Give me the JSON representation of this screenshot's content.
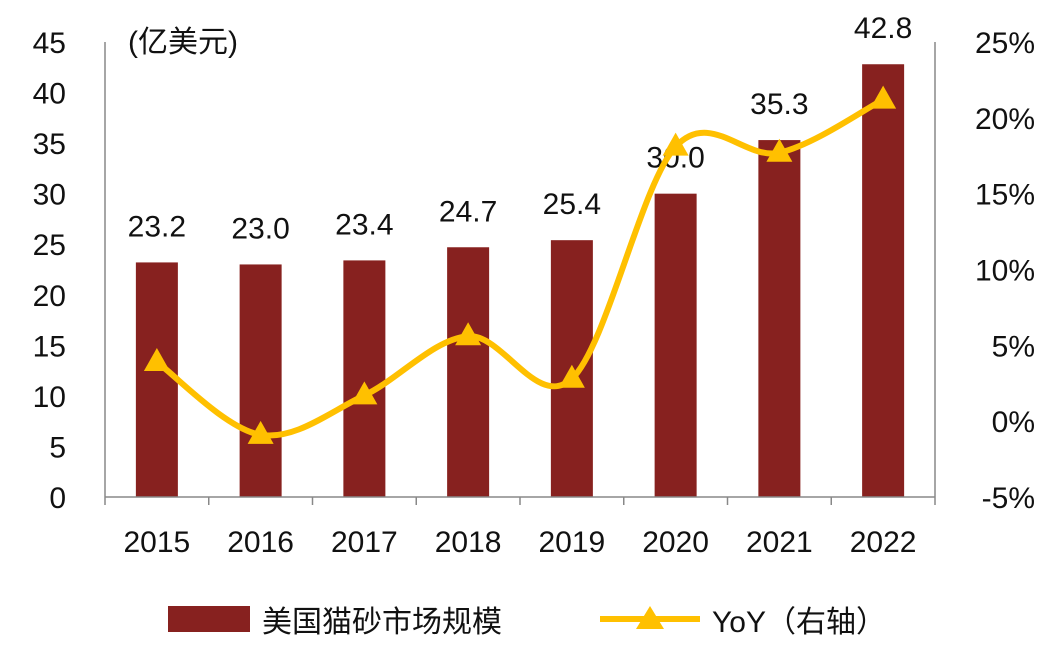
{
  "chart_data": {
    "type": "bar+line",
    "categories": [
      "2015",
      "2016",
      "2017",
      "2018",
      "2019",
      "2020",
      "2021",
      "2022"
    ],
    "series": [
      {
        "name": "美国猫砂市场规模",
        "type": "bar",
        "axis": "left",
        "values": [
          23.2,
          23.0,
          23.4,
          24.7,
          25.4,
          30.0,
          35.3,
          42.8
        ],
        "data_labels": [
          "23.2",
          "23.0",
          "23.4",
          "24.7",
          "25.4",
          "30.0",
          "35.3",
          "42.8"
        ],
        "color": "#87211F"
      },
      {
        "name": "YoY（右轴）",
        "type": "line",
        "axis": "right",
        "values": [
          3.9,
          -0.9,
          1.7,
          5.6,
          2.8,
          18.1,
          17.7,
          21.2
        ],
        "color": "#FFC000",
        "marker": "triangle"
      }
    ],
    "left_axis": {
      "unit_label": "(亿美元)",
      "range": [
        0,
        45
      ],
      "ticks": [
        "0",
        "5",
        "10",
        "15",
        "20",
        "25",
        "30",
        "35",
        "40",
        "45"
      ]
    },
    "right_axis": {
      "range": [
        -5,
        25
      ],
      "ticks": [
        "-5%",
        "0%",
        "5%",
        "10%",
        "15%",
        "20%",
        "25%"
      ]
    },
    "grid": false,
    "legend_position": "bottom"
  }
}
